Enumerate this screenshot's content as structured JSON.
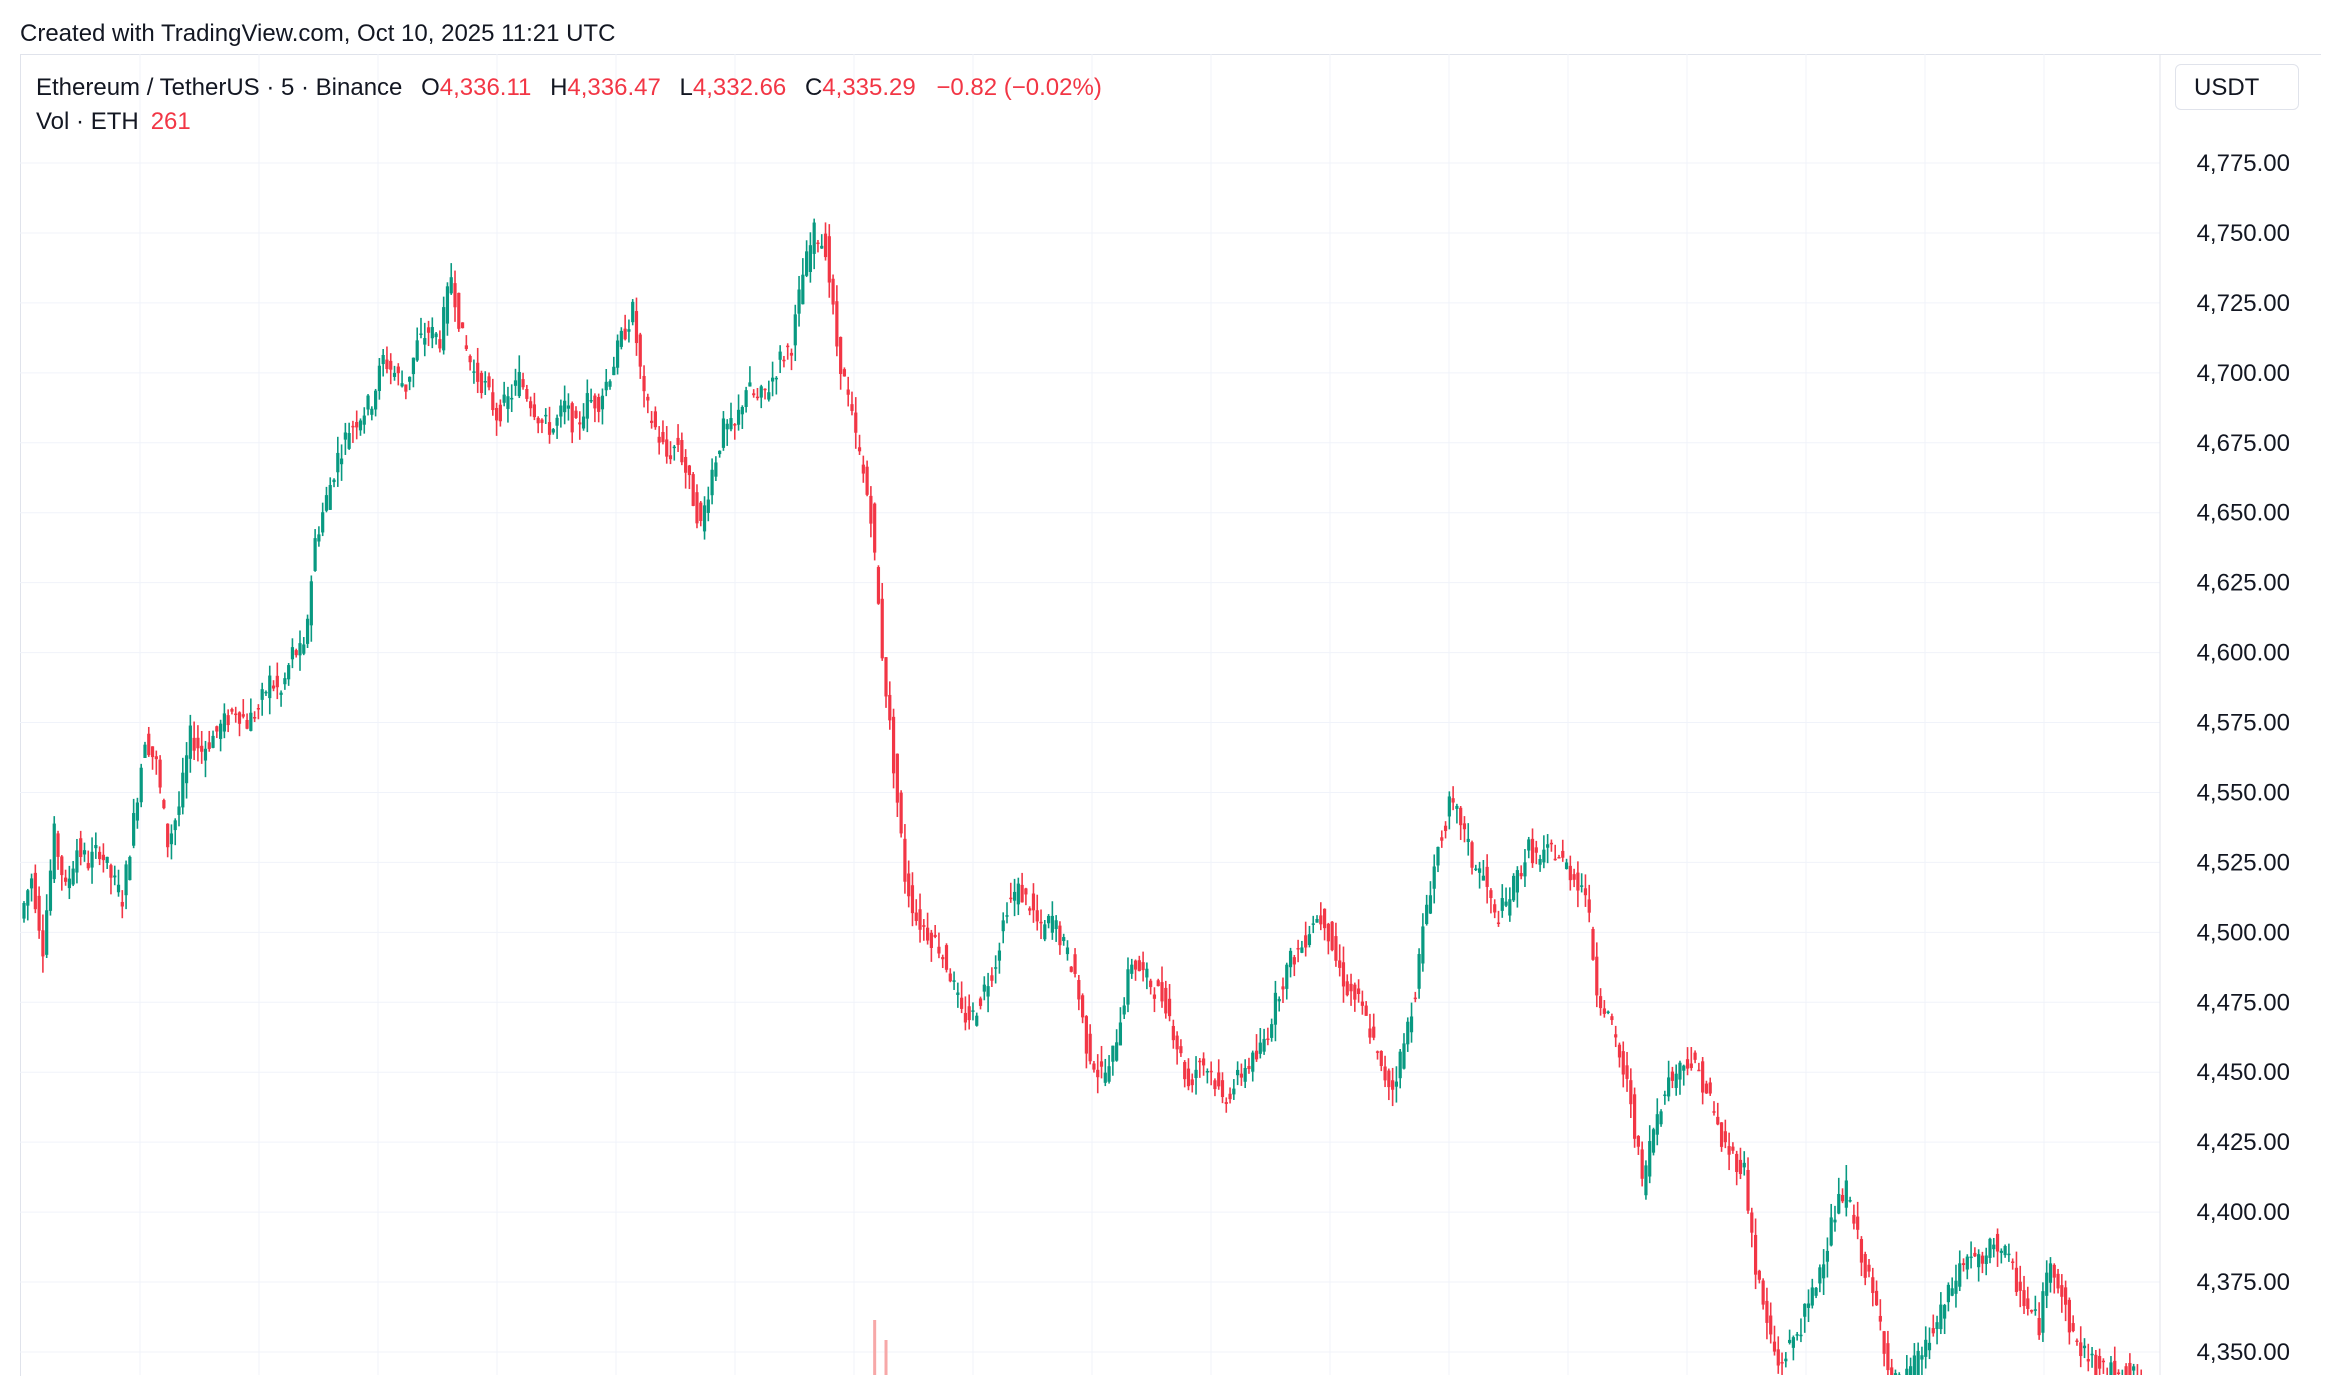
{
  "header": {
    "created_with": "Created with TradingView.com, Oct 10, 2025 11:21 UTC"
  },
  "legend": {
    "symbol": "Ethereum / TetherUS · 5 · Binance",
    "open_label": "O",
    "open": "4,336.11",
    "high_label": "H",
    "high": "4,336.47",
    "low_label": "L",
    "low": "4,332.66",
    "close_label": "C",
    "close": "4,335.29",
    "change": "−0.82 (−0.02%)",
    "volume_label": "Vol · ETH",
    "volume": "261"
  },
  "currency_button": "USDT",
  "colors": {
    "up": "#089981",
    "down": "#f23645",
    "grid": "#f0f3fa",
    "text": "#131722"
  },
  "chart_data": {
    "type": "candlestick",
    "title": "Ethereum / TetherUS · 5 · Binance",
    "ylabel": "USDT",
    "ylim": [
      4340,
      4800
    ],
    "y_ticks": [
      "4,775.00",
      "4,750.00",
      "4,725.00",
      "4,700.00",
      "4,675.00",
      "4,650.00",
      "4,625.00",
      "4,600.00",
      "4,575.00",
      "4,550.00",
      "4,525.00",
      "4,500.00",
      "4,475.00",
      "4,450.00",
      "4,425.00",
      "4,400.00",
      "4,375.00",
      "4,350.00"
    ],
    "grid": true,
    "series": [
      {
        "kind": "close-path",
        "values": [
          4505,
          4520,
          4495,
          4535,
          4515,
          4530,
          4525,
          4530,
          4520,
          4512,
          4540,
          4570,
          4560,
          4532,
          4545,
          4570,
          4565,
          4570,
          4575,
          4580,
          4575,
          4580,
          4590,
          4585,
          4600,
          4600,
          4640,
          4655,
          4670,
          4680,
          4685,
          4690,
          4705,
          4700,
          4695,
          4710,
          4715,
          4712,
          4735,
          4712,
          4700,
          4695,
          4685,
          4690,
          4698,
          4690,
          4682,
          4680,
          4688,
          4680,
          4690,
          4690,
          4700,
          4712,
          4722,
          4690,
          4680,
          4670,
          4675,
          4660,
          4645,
          4665,
          4680,
          4680,
          4695,
          4690,
          4695,
          4705,
          4710,
          4735,
          4750,
          4745,
          4710,
          4690,
          4670,
          4650,
          4600,
          4560,
          4520,
          4505,
          4500,
          4495,
          4485,
          4470,
          4470,
          4480,
          4490,
          4510,
          4515,
          4510,
          4500,
          4505,
          4495,
          4485,
          4460,
          4450,
          4450,
          4470,
          4490,
          4485,
          4480,
          4475,
          4460,
          4445,
          4455,
          4450,
          4440,
          4445,
          4452,
          4455,
          4465,
          4480,
          4490,
          4495,
          4505,
          4505,
          4490,
          4480,
          4475,
          4465,
          4450,
          4445,
          4460,
          4480,
          4510,
          4530,
          4545,
          4540,
          4525,
          4520,
          4505,
          4510,
          4520,
          4530,
          4525,
          4530,
          4525,
          4520,
          4515,
          4480,
          4470,
          4455,
          4440,
          4410,
          4430,
          4445,
          4450,
          4455,
          4450,
          4440,
          4425,
          4420,
          4415,
          4380,
          4360,
          4345,
          4352,
          4360,
          4370,
          4385,
          4400,
          4408,
          4390,
          4375,
          4360,
          4340,
          4338,
          4345,
          4352,
          4360,
          4370,
          4380,
          4385,
          4380,
          4390,
          4385,
          4375,
          4365,
          4360,
          4385,
          4370,
          4355,
          4350,
          4345,
          4342,
          4345,
          4342,
          4340
        ]
      }
    ],
    "volume_spikes": [
      {
        "x_index": 75,
        "relative": 0.55
      },
      {
        "x_index": 76,
        "relative": 0.35
      }
    ]
  }
}
